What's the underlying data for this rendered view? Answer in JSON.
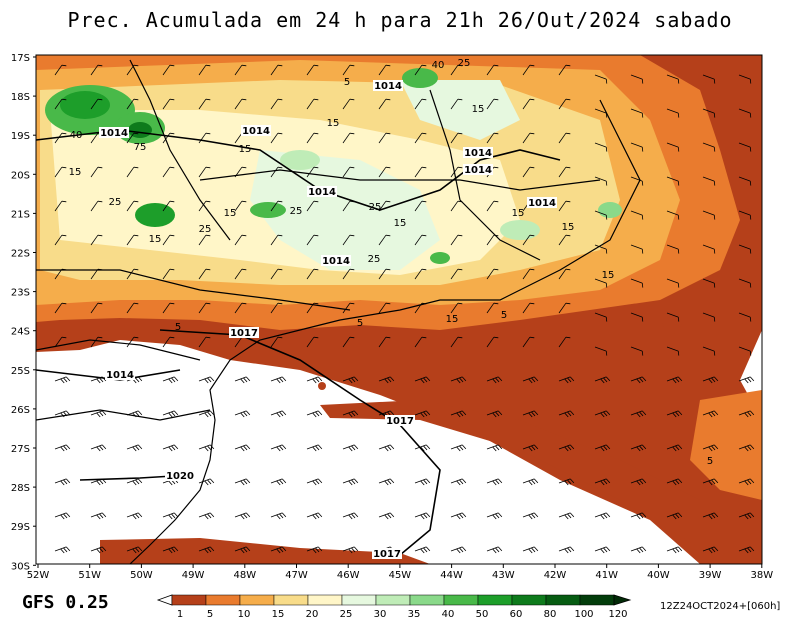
{
  "title": "Prec. Acumulada em 24 h para 21h 26/Out/2024 sabado",
  "model": "GFS 0.25",
  "run_info": "12Z24OCT2024+[060h]",
  "lat_labels": [
    "17S",
    "18S",
    "19S",
    "20S",
    "21S",
    "22S",
    "23S",
    "24S",
    "25S",
    "26S",
    "27S",
    "28S",
    "29S",
    "30S"
  ],
  "lon_labels": [
    "52W",
    "51W",
    "50W",
    "49W",
    "48W",
    "47W",
    "46W",
    "45W",
    "44W",
    "43W",
    "42W",
    "41W",
    "40W",
    "39W",
    "38W"
  ],
  "legend": {
    "values": [
      "1",
      "5",
      "10",
      "15",
      "20",
      "25",
      "30",
      "35",
      "40",
      "50",
      "60",
      "80",
      "100",
      "120"
    ],
    "colors": [
      "#ffffff",
      "#b5401a",
      "#e97b2e",
      "#f5ad4b",
      "#f8dc8a",
      "#fff6c8",
      "#e6f8df",
      "#bfecb7",
      "#8ad98a",
      "#49b949",
      "#1d9e2a",
      "#0e7b1c",
      "#065c12",
      "#033d0b",
      "#022a07"
    ]
  },
  "isobars": [
    {
      "label": "1014"
    },
    {
      "label": "1014"
    },
    {
      "label": "1014"
    },
    {
      "label": "1014"
    },
    {
      "label": "1014"
    },
    {
      "label": "1014"
    },
    {
      "label": "1014"
    },
    {
      "label": "1014"
    },
    {
      "label": "1014"
    },
    {
      "label": "1017"
    },
    {
      "label": "1017"
    },
    {
      "label": "1017"
    },
    {
      "label": "1020"
    }
  ],
  "precip_labels": [
    {
      "label": "5"
    },
    {
      "label": "40"
    },
    {
      "label": "25"
    },
    {
      "label": "15"
    },
    {
      "label": "40"
    },
    {
      "label": "75"
    },
    {
      "label": "15"
    },
    {
      "label": "25"
    },
    {
      "label": "15"
    },
    {
      "label": "25"
    },
    {
      "label": "15"
    },
    {
      "label": "25"
    },
    {
      "label": "15"
    },
    {
      "label": "25"
    },
    {
      "label": "15"
    },
    {
      "label": "15"
    },
    {
      "label": "25"
    },
    {
      "label": "15"
    },
    {
      "label": "15"
    },
    {
      "label": "5"
    },
    {
      "label": "5"
    },
    {
      "label": "15"
    },
    {
      "label": "5"
    },
    {
      "label": "15"
    },
    {
      "label": "5"
    }
  ]
}
